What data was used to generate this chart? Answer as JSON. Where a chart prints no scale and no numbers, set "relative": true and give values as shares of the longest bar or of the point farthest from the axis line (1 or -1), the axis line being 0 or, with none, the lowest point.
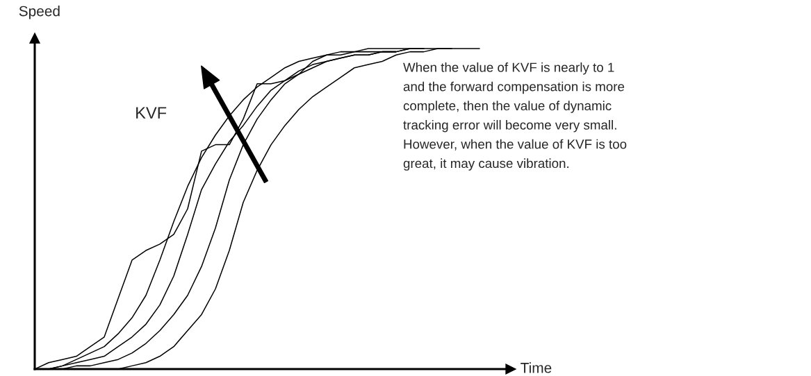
{
  "chart_data": {
    "type": "line",
    "relative": true,
    "xlabel": "Time",
    "ylabel": "Speed",
    "legend": false,
    "categories": [
      null,
      null,
      null,
      null,
      null,
      null,
      null,
      null,
      null,
      null,
      null,
      null,
      null,
      null,
      null,
      null,
      null,
      null,
      null,
      null,
      null,
      null,
      null,
      null,
      null,
      null,
      null,
      null,
      null,
      null,
      null,
      null,
      null
    ],
    "series": [
      {
        "color": "#000000",
        "values": [
          0,
          0.02,
          0.03,
          0.04,
          0.07,
          0.1,
          0.22,
          0.34,
          0.37,
          0.39,
          0.42,
          0.5,
          0.68,
          0.7,
          0.7,
          0.78,
          0.89,
          0.89,
          0.9,
          0.92,
          0.96,
          0.98,
          0.98,
          0.99,
          0.99,
          0.99,
          0.99,
          null,
          null,
          null,
          null,
          null,
          null
        ]
      },
      {
        "color": "#000000",
        "values": [
          0,
          0,
          0.01,
          0.03,
          0.05,
          0.07,
          0.11,
          0.16,
          0.23,
          0.34,
          0.46,
          0.57,
          0.66,
          0.73,
          0.79,
          0.84,
          0.88,
          0.91,
          0.94,
          0.96,
          0.97,
          0.98,
          0.99,
          0.99,
          1,
          1,
          1,
          1,
          null,
          null,
          null,
          null,
          null
        ]
      },
      {
        "color": "#000000",
        "values": [
          0,
          0,
          0.01,
          0.02,
          0.03,
          0.04,
          0.07,
          0.1,
          0.14,
          0.2,
          0.29,
          0.42,
          0.56,
          0.64,
          0.71,
          0.76,
          0.82,
          0.87,
          0.9,
          0.93,
          0.95,
          0.96,
          0.97,
          0.98,
          0.98,
          0.99,
          0.99,
          1,
          1,
          null,
          null,
          null,
          null
        ]
      },
      {
        "color": "#000000",
        "values": [
          0,
          0,
          0,
          0.01,
          0.01,
          0.02,
          0.03,
          0.05,
          0.08,
          0.12,
          0.17,
          0.23,
          0.32,
          0.44,
          0.59,
          0.7,
          0.78,
          0.84,
          0.89,
          0.92,
          0.94,
          0.96,
          0.97,
          0.98,
          0.98,
          0.99,
          0.99,
          1,
          1,
          1,
          1,
          null,
          null
        ]
      },
      {
        "color": "#000000",
        "values": [
          0,
          0,
          0,
          0,
          0,
          0,
          0,
          0.01,
          0.02,
          0.04,
          0.07,
          0.12,
          0.17,
          0.25,
          0.37,
          0.52,
          0.62,
          0.7,
          0.76,
          0.81,
          0.85,
          0.88,
          0.91,
          0.94,
          0.95,
          0.96,
          0.98,
          0.99,
          0.99,
          1,
          1,
          1,
          1
        ]
      }
    ],
    "annotations": [
      "KVF",
      "When the value of KVF is nearly to 1\nand the forward compensation is more\ncomplete, then the value of dynamic\ntracking error will become very small.\nHowever, when the value of KVF is too\ngreat, it may cause vibration."
    ]
  }
}
